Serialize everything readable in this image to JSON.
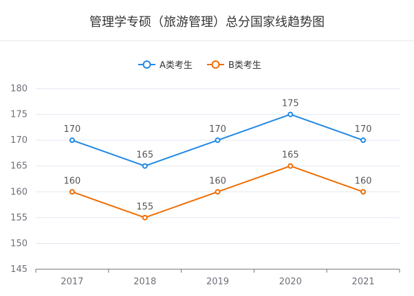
{
  "chart_data": {
    "type": "line",
    "title": "管理学专硕（旅游管理）总分国家线趋势图",
    "categories": [
      "2017",
      "2018",
      "2019",
      "2020",
      "2021"
    ],
    "series": [
      {
        "name": "A类考生",
        "values": [
          170,
          165,
          170,
          175,
          170
        ],
        "color": "#1e88e5"
      },
      {
        "name": "B类考生",
        "values": [
          160,
          155,
          160,
          165,
          160
        ],
        "color": "#ef6c00"
      }
    ],
    "ylim": [
      145,
      180
    ],
    "yticks": [
      145,
      150,
      155,
      160,
      165,
      170,
      175,
      180
    ],
    "grid": true,
    "legend_position": "top-center",
    "xlabel": "",
    "ylabel": ""
  }
}
